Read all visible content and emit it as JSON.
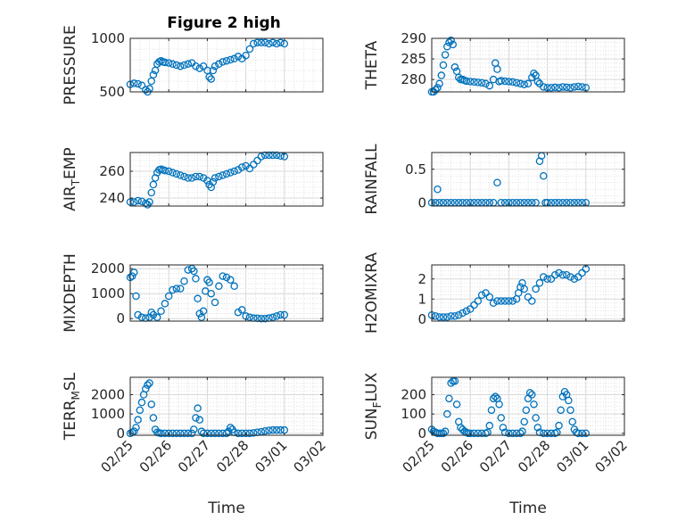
{
  "figure": {
    "title": "Figure 2 high",
    "colors": {
      "marker": "#0072BD",
      "axis": "#262626",
      "grid": "#d9d9d9",
      "background": "#ffffff"
    },
    "date_ticks": [
      "02/25",
      "02/26",
      "02/27",
      "02/28",
      "03/01",
      "03/02"
    ]
  },
  "chart_data": [
    {
      "type": "scatter",
      "ylabel": "PRESSURE",
      "xlabel": "",
      "x_range": [
        0,
        5
      ],
      "ylim": [
        500,
        1000
      ],
      "yticks": [
        500,
        1000
      ],
      "grid": true,
      "minor_grid": true,
      "marker": "open-circle",
      "x": [
        0,
        0.1,
        0.2,
        0.3,
        0.4,
        0.45,
        0.5,
        0.55,
        0.6,
        0.65,
        0.7,
        0.75,
        0.8,
        0.85,
        0.9,
        1.0,
        1.1,
        1.2,
        1.3,
        1.4,
        1.5,
        1.6,
        1.7,
        1.8,
        1.9,
        2.0,
        2.05,
        2.1,
        2.15,
        2.2,
        2.3,
        2.4,
        2.5,
        2.6,
        2.7,
        2.8,
        2.9,
        3.0,
        3.1,
        3.2,
        3.3,
        3.4,
        3.5,
        3.6,
        3.7,
        3.8,
        3.9,
        4.0
      ],
      "y": [
        570,
        580,
        575,
        560,
        520,
        500,
        530,
        600,
        660,
        700,
        760,
        780,
        790,
        780,
        775,
        770,
        760,
        750,
        740,
        750,
        760,
        770,
        740,
        720,
        740,
        700,
        640,
        620,
        700,
        740,
        760,
        780,
        790,
        800,
        810,
        830,
        810,
        840,
        900,
        950,
        960,
        960,
        960,
        950,
        960,
        950,
        960,
        950
      ]
    },
    {
      "type": "scatter",
      "ylabel": "THETA",
      "xlabel": "",
      "x_range": [
        0,
        5
      ],
      "ylim": [
        277,
        290
      ],
      "yticks": [
        280,
        285,
        290
      ],
      "grid": true,
      "minor_grid": true,
      "marker": "open-circle",
      "x": [
        0,
        0.05,
        0.1,
        0.15,
        0.2,
        0.25,
        0.3,
        0.35,
        0.4,
        0.45,
        0.5,
        0.55,
        0.6,
        0.65,
        0.7,
        0.75,
        0.8,
        0.85,
        0.9,
        1.0,
        1.1,
        1.2,
        1.3,
        1.4,
        1.5,
        1.6,
        1.65,
        1.7,
        1.75,
        1.8,
        1.9,
        2.0,
        2.1,
        2.2,
        2.3,
        2.4,
        2.5,
        2.6,
        2.65,
        2.7,
        2.75,
        2.8,
        2.9,
        3.0,
        3.1,
        3.2,
        3.3,
        3.4,
        3.5,
        3.6,
        3.7,
        3.8,
        3.9,
        4.0
      ],
      "y": [
        277,
        277,
        277.5,
        278,
        279,
        281,
        283.5,
        286,
        288,
        289,
        289.5,
        288.5,
        283,
        282,
        280.5,
        280,
        280,
        279.8,
        279.6,
        279.5,
        279.4,
        279.3,
        279.2,
        279,
        278.5,
        280,
        284,
        282.5,
        279.5,
        279.7,
        279.6,
        279.5,
        279.4,
        279.2,
        279,
        278.8,
        279,
        280.5,
        281.5,
        281,
        279.5,
        279,
        278.2,
        278,
        278,
        278.1,
        278,
        278.2,
        278.1,
        278,
        278.2,
        278.3,
        278.2,
        278
      ]
    },
    {
      "type": "scatter",
      "ylabel": "AIR_TEMP",
      "xlabel": "",
      "x_range": [
        0,
        5
      ],
      "ylim": [
        234,
        274
      ],
      "yticks": [
        240,
        260
      ],
      "grid": true,
      "minor_grid": true,
      "marker": "open-circle",
      "x": [
        0,
        0.1,
        0.2,
        0.3,
        0.4,
        0.45,
        0.5,
        0.55,
        0.6,
        0.65,
        0.7,
        0.75,
        0.8,
        0.85,
        0.9,
        1.0,
        1.1,
        1.2,
        1.3,
        1.4,
        1.5,
        1.6,
        1.7,
        1.8,
        1.9,
        2.0,
        2.05,
        2.1,
        2.15,
        2.2,
        2.3,
        2.4,
        2.5,
        2.6,
        2.7,
        2.8,
        2.9,
        3.0,
        3.1,
        3.2,
        3.3,
        3.4,
        3.5,
        3.6,
        3.7,
        3.8,
        3.9,
        4.0
      ],
      "y": [
        237,
        237,
        238,
        237.5,
        236,
        235,
        237,
        244,
        250,
        255,
        259,
        261,
        261.5,
        261,
        260.5,
        260,
        259,
        258,
        257,
        256,
        255,
        255,
        256,
        256,
        255,
        253,
        250,
        248,
        252,
        255,
        256,
        257,
        258,
        259,
        260,
        261,
        263,
        264,
        262,
        265,
        268,
        271,
        272,
        272,
        272,
        272,
        271.5,
        271
      ]
    },
    {
      "type": "scatter",
      "ylabel": "RAINFALL",
      "xlabel": "",
      "x_range": [
        0,
        5
      ],
      "ylim": [
        -0.05,
        0.75
      ],
      "yticks": [
        0,
        0.5
      ],
      "grid": true,
      "minor_grid": true,
      "marker": "open-circle",
      "x": [
        0,
        0.1,
        0.15,
        0.2,
        0.3,
        0.4,
        0.5,
        0.6,
        0.7,
        0.8,
        0.9,
        1.0,
        1.1,
        1.2,
        1.3,
        1.4,
        1.5,
        1.6,
        1.7,
        1.8,
        1.9,
        2.0,
        2.1,
        2.2,
        2.3,
        2.4,
        2.5,
        2.6,
        2.7,
        2.8,
        2.85,
        2.9,
        2.95,
        3.0,
        3.1,
        3.2,
        3.3,
        3.4,
        3.5,
        3.6,
        3.7,
        3.8,
        3.9,
        4.0
      ],
      "y": [
        0,
        0,
        0.2,
        0,
        0,
        0,
        0,
        0,
        0,
        0,
        0,
        0,
        0,
        0,
        0,
        0,
        0,
        0,
        0.3,
        0,
        0,
        0,
        0,
        0,
        0,
        0,
        0,
        0,
        0,
        0.62,
        0.7,
        0.4,
        0,
        0,
        0,
        0,
        0,
        0,
        0,
        0,
        0,
        0,
        0,
        0
      ]
    },
    {
      "type": "scatter",
      "ylabel": "MIXDEPTH",
      "xlabel": "",
      "x_range": [
        0,
        5
      ],
      "ylim": [
        -100,
        2150
      ],
      "yticks": [
        0,
        1000,
        2000
      ],
      "grid": true,
      "minor_grid": true,
      "marker": "open-circle",
      "x": [
        0,
        0.05,
        0.1,
        0.15,
        0.2,
        0.3,
        0.4,
        0.5,
        0.55,
        0.6,
        0.7,
        0.8,
        0.9,
        1.0,
        1.1,
        1.2,
        1.3,
        1.4,
        1.5,
        1.6,
        1.65,
        1.7,
        1.75,
        1.8,
        1.85,
        1.9,
        1.95,
        2.0,
        2.05,
        2.1,
        2.2,
        2.3,
        2.4,
        2.5,
        2.6,
        2.7,
        2.8,
        2.9,
        3.0,
        3.1,
        3.2,
        3.3,
        3.4,
        3.5,
        3.6,
        3.7,
        3.8,
        3.9,
        4.0
      ],
      "y": [
        1650,
        1700,
        1850,
        900,
        150,
        50,
        20,
        50,
        250,
        150,
        50,
        300,
        600,
        900,
        1150,
        1200,
        1200,
        1500,
        1950,
        2000,
        1900,
        1600,
        800,
        200,
        50,
        300,
        1100,
        1550,
        1450,
        1000,
        650,
        1300,
        1700,
        1650,
        1550,
        1300,
        250,
        350,
        100,
        50,
        20,
        10,
        0,
        0,
        20,
        50,
        100,
        150,
        150
      ]
    },
    {
      "type": "scatter",
      "ylabel": "H2OMIXRA",
      "xlabel": "",
      "x_range": [
        0,
        5
      ],
      "ylim": [
        -0.1,
        2.7
      ],
      "yticks": [
        0,
        1,
        2
      ],
      "grid": true,
      "minor_grid": true,
      "marker": "open-circle",
      "x": [
        0,
        0.1,
        0.2,
        0.3,
        0.4,
        0.5,
        0.6,
        0.7,
        0.8,
        0.9,
        1.0,
        1.1,
        1.2,
        1.3,
        1.4,
        1.5,
        1.6,
        1.7,
        1.8,
        1.9,
        2.0,
        2.1,
        2.2,
        2.25,
        2.3,
        2.35,
        2.4,
        2.5,
        2.6,
        2.7,
        2.8,
        2.9,
        3.0,
        3.1,
        3.2,
        3.3,
        3.4,
        3.5,
        3.6,
        3.7,
        3.8,
        3.9,
        4.0
      ],
      "y": [
        0.2,
        0.15,
        0.1,
        0.1,
        0.1,
        0.15,
        0.15,
        0.2,
        0.3,
        0.4,
        0.5,
        0.7,
        0.9,
        1.2,
        1.3,
        1.1,
        0.8,
        0.9,
        0.9,
        0.9,
        0.9,
        0.9,
        1.0,
        1.3,
        1.6,
        1.8,
        1.5,
        1.1,
        0.9,
        1.5,
        1.8,
        2.1,
        2.0,
        2.0,
        2.2,
        2.3,
        2.2,
        2.2,
        2.1,
        2.0,
        2.1,
        2.3,
        2.5
      ]
    },
    {
      "type": "scatter",
      "ylabel": "TERR_MSL",
      "xlabel": "Time",
      "x_range": [
        0,
        5
      ],
      "ylim": [
        -100,
        2900
      ],
      "yticks": [
        0,
        1000,
        2000
      ],
      "xticks": [
        "02/25",
        "02/26",
        "02/27",
        "02/28",
        "03/01",
        "03/02"
      ],
      "grid": true,
      "minor_grid": true,
      "marker": "open-circle",
      "x": [
        0,
        0.05,
        0.1,
        0.15,
        0.2,
        0.25,
        0.3,
        0.35,
        0.4,
        0.45,
        0.5,
        0.55,
        0.6,
        0.65,
        0.7,
        0.75,
        0.8,
        0.9,
        1.0,
        1.1,
        1.2,
        1.3,
        1.4,
        1.5,
        1.6,
        1.65,
        1.7,
        1.75,
        1.8,
        1.85,
        1.9,
        2.0,
        2.1,
        2.2,
        2.3,
        2.4,
        2.5,
        2.55,
        2.6,
        2.65,
        2.7,
        2.8,
        2.9,
        3.0,
        3.1,
        3.2,
        3.3,
        3.4,
        3.5,
        3.6,
        3.7,
        3.8,
        3.9,
        4.0
      ],
      "y": [
        0,
        50,
        100,
        300,
        700,
        1200,
        1600,
        2000,
        2300,
        2500,
        2600,
        1500,
        800,
        200,
        50,
        20,
        0,
        0,
        0,
        0,
        0,
        0,
        0,
        0,
        0,
        200,
        800,
        1300,
        700,
        100,
        0,
        0,
        0,
        0,
        0,
        0,
        0,
        100,
        300,
        200,
        50,
        0,
        0,
        0,
        0,
        20,
        50,
        80,
        120,
        150,
        170,
        170,
        170,
        170
      ]
    },
    {
      "type": "scatter",
      "ylabel": "SUN_FLUX",
      "xlabel": "Time",
      "x_range": [
        0,
        5
      ],
      "ylim": [
        -10,
        290
      ],
      "yticks": [
        0,
        100,
        200
      ],
      "xticks": [
        "02/25",
        "02/26",
        "02/27",
        "02/28",
        "03/01",
        "03/02"
      ],
      "grid": true,
      "minor_grid": true,
      "marker": "open-circle",
      "x": [
        0,
        0.05,
        0.1,
        0.15,
        0.2,
        0.25,
        0.3,
        0.35,
        0.4,
        0.45,
        0.5,
        0.55,
        0.6,
        0.65,
        0.7,
        0.75,
        0.8,
        0.85,
        0.9,
        0.95,
        1.0,
        1.1,
        1.2,
        1.3,
        1.4,
        1.45,
        1.5,
        1.55,
        1.6,
        1.65,
        1.7,
        1.75,
        1.8,
        1.85,
        1.9,
        2.0,
        2.1,
        2.2,
        2.3,
        2.35,
        2.4,
        2.45,
        2.5,
        2.55,
        2.6,
        2.65,
        2.7,
        2.75,
        2.8,
        2.9,
        3.0,
        3.1,
        3.2,
        3.25,
        3.3,
        3.35,
        3.4,
        3.45,
        3.5,
        3.55,
        3.6,
        3.65,
        3.7,
        3.75,
        3.8,
        3.9,
        4.0
      ],
      "y": [
        20,
        10,
        5,
        0,
        0,
        0,
        0,
        10,
        100,
        180,
        260,
        270,
        270,
        150,
        60,
        30,
        20,
        10,
        5,
        0,
        0,
        0,
        0,
        0,
        0,
        5,
        40,
        120,
        180,
        190,
        180,
        150,
        80,
        30,
        5,
        0,
        0,
        0,
        0,
        10,
        60,
        120,
        180,
        210,
        200,
        150,
        80,
        30,
        5,
        0,
        0,
        0,
        0,
        5,
        40,
        120,
        190,
        215,
        200,
        170,
        120,
        60,
        20,
        5,
        0,
        0,
        0
      ]
    }
  ]
}
